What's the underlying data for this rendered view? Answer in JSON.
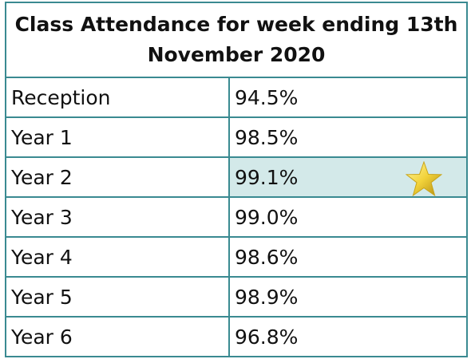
{
  "table": {
    "title": "Class Attendance for week ending 13th November 2020",
    "rows": [
      [
        "Reception",
        "94.5%"
      ],
      [
        "Year 1",
        "98.5%"
      ],
      [
        "Year 2",
        "99.1%"
      ],
      [
        "Year 3",
        "99.0%"
      ],
      [
        "Year 4",
        "98.6%"
      ],
      [
        "Year 5",
        "98.9%"
      ],
      [
        "Year 6",
        "96.8%"
      ]
    ]
  }
}
